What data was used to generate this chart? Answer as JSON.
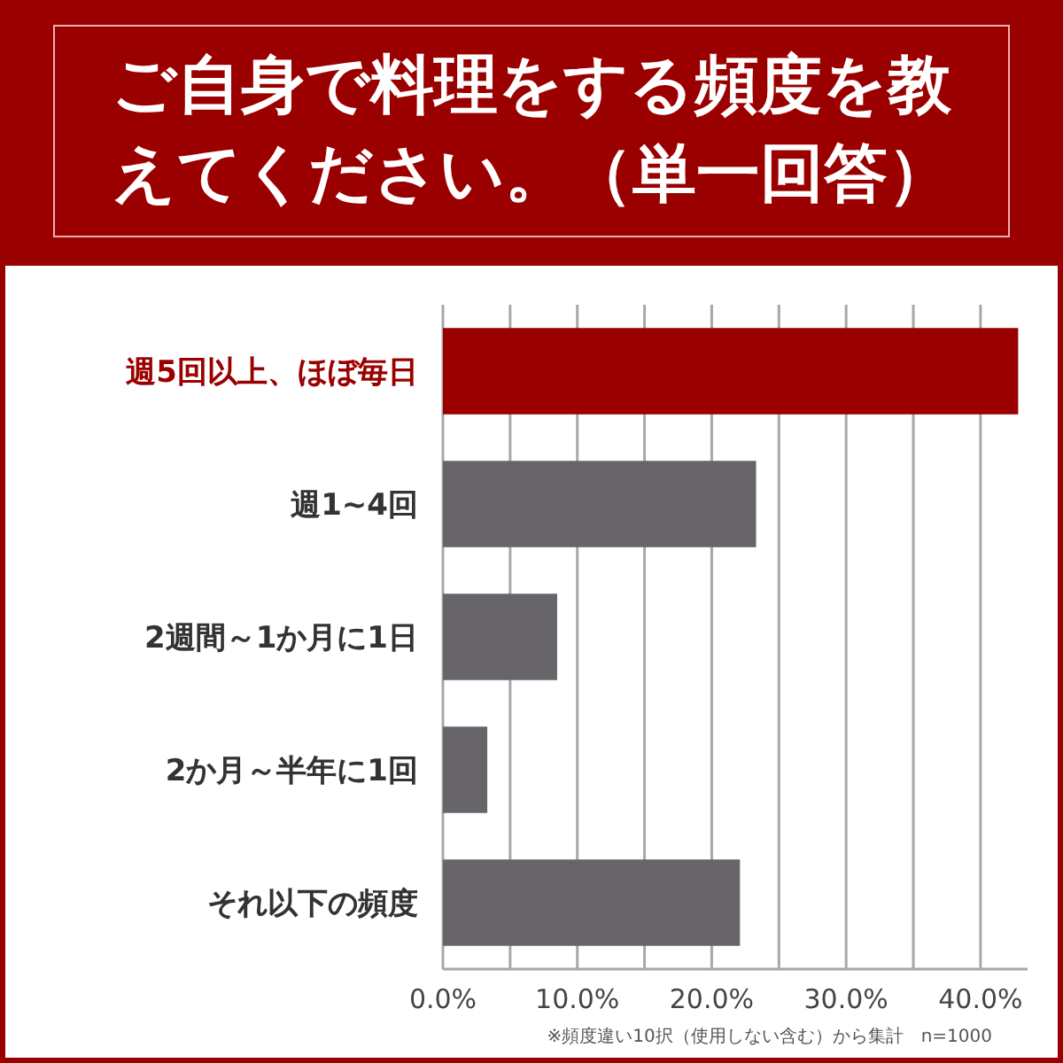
{
  "chart_data": {
    "type": "bar",
    "orientation": "horizontal",
    "title": "ご自身で料理をする頻度を教えてください。（単一回答）",
    "categories": [
      "週5回以上、ほぼ毎日",
      "週1~4回",
      "2週間～1か月に1日",
      "2か月～半年に1回",
      "それ以下の頻度"
    ],
    "values": [
      42.8,
      23.3,
      8.5,
      3.3,
      22.1
    ],
    "colors": [
      "#9b0000",
      "#676569",
      "#676569",
      "#676569",
      "#676569"
    ],
    "xlim": [
      0,
      43.5
    ],
    "xticks": [
      {
        "value": 0,
        "label": "0.0%"
      },
      {
        "value": 5,
        "label": null
      },
      {
        "value": 10,
        "label": "10.0%"
      },
      {
        "value": 15,
        "label": null
      },
      {
        "value": 20,
        "label": "20.0%"
      },
      {
        "value": 25,
        "label": null
      },
      {
        "value": 30,
        "label": "30.0%"
      },
      {
        "value": 35,
        "label": null
      },
      {
        "value": 40,
        "label": "40.0%"
      }
    ],
    "grid": "x",
    "annotations": [
      "※頻度違い10択（使用しない含む）から集計　n=1000"
    ]
  }
}
